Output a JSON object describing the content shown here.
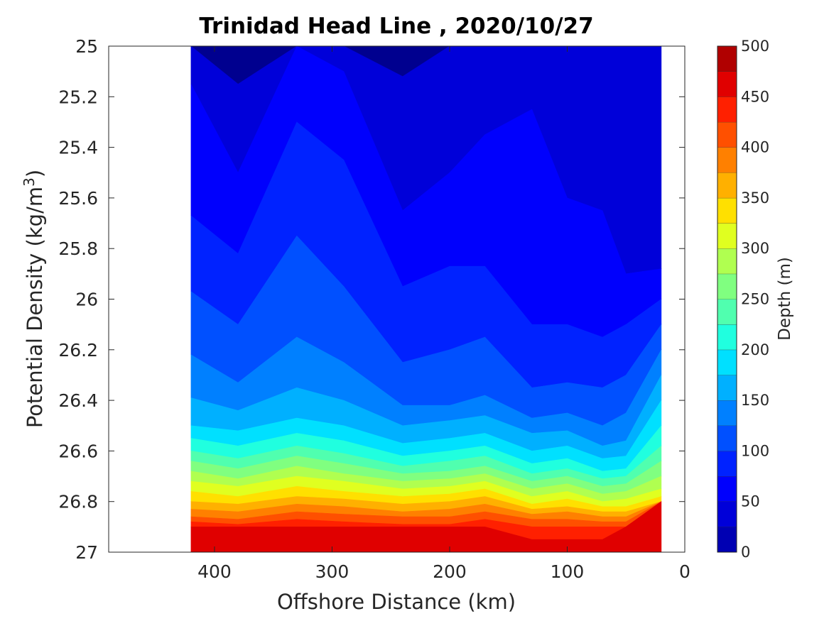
{
  "chart_data": {
    "type": "heatmap",
    "subtype": "filled-contour",
    "title": "Trinidad Head Line , 2020/10/27",
    "xlabel": "Offshore Distance (km)",
    "ylabel_main": "Potential Density (kg/m",
    "ylabel_sup": "3",
    "ylabel_close": ")",
    "colorbar_label": "Depth (m)",
    "x_reversed": true,
    "y_reversed": true,
    "xlim": [
      0,
      490
    ],
    "ylim": [
      25,
      27
    ],
    "xticks": [
      400,
      300,
      200,
      100,
      0
    ],
    "xtick_labels": [
      "400",
      "300",
      "200",
      "100",
      "0"
    ],
    "yticks": [
      25,
      25.2,
      25.4,
      25.6,
      25.8,
      26,
      26.2,
      26.4,
      26.6,
      26.8,
      27
    ],
    "ytick_labels": [
      "25",
      "25.2",
      "25.4",
      "25.6",
      "25.8",
      "26",
      "26.2",
      "26.4",
      "26.6",
      "26.8",
      "27"
    ],
    "colorbar_ticks": [
      0,
      50,
      100,
      150,
      200,
      250,
      300,
      350,
      400,
      450,
      500
    ],
    "colorbar_tick_labels": [
      "0",
      "50",
      "100",
      "150",
      "200",
      "250",
      "300",
      "350",
      "400",
      "450",
      "500"
    ],
    "colorbar_range": [
      0,
      500
    ],
    "contour_interval": 25,
    "colormap": "jet",
    "level_colors": [
      "#00008f",
      "#0000b3",
      "#0000d9",
      "#0000fd",
      "#0022ff",
      "#0050ff",
      "#0080ff",
      "#00b0ff",
      "#00e0ff",
      "#20ffdf",
      "#50ffaf",
      "#80ff80",
      "#b0ff50",
      "#e0ff20",
      "#ffe000",
      "#ffb000",
      "#ff8000",
      "#ff5000",
      "#ff2000",
      "#e00000",
      "#b00000"
    ],
    "station_x": [
      420,
      380,
      330,
      290,
      240,
      200,
      170,
      130,
      100,
      70,
      50,
      20
    ],
    "isopycnal_depths": [
      {
        "depth": 25,
        "y": [
          25.0,
          25.15,
          25.0,
          25.0,
          25.12,
          25.0,
          25.0,
          25.0,
          25.0,
          25.0,
          25.0,
          25.0
        ]
      },
      {
        "depth": 50,
        "y": [
          25.0,
          25.15,
          25.0,
          25.0,
          25.12,
          25.0,
          25.0,
          25.0,
          25.0,
          25.0,
          25.0,
          25.0
        ]
      },
      {
        "depth": 75,
        "y": [
          25.15,
          25.5,
          25.0,
          25.1,
          25.65,
          25.5,
          25.35,
          25.25,
          25.6,
          25.65,
          25.9,
          25.88
        ]
      },
      {
        "depth": 100,
        "y": [
          25.67,
          25.82,
          25.3,
          25.45,
          25.95,
          25.87,
          25.87,
          26.1,
          26.1,
          26.15,
          26.1,
          26.0
        ]
      },
      {
        "depth": 125,
        "y": [
          25.97,
          26.1,
          25.75,
          25.95,
          26.25,
          26.2,
          26.15,
          26.35,
          26.33,
          26.35,
          26.3,
          26.1
        ]
      },
      {
        "depth": 150,
        "y": [
          26.22,
          26.33,
          26.15,
          26.25,
          26.42,
          26.42,
          26.38,
          26.47,
          26.45,
          26.5,
          26.45,
          26.2
        ]
      },
      {
        "depth": 175,
        "y": [
          26.39,
          26.44,
          26.35,
          26.4,
          26.5,
          26.48,
          26.46,
          26.53,
          26.52,
          26.58,
          26.56,
          26.3
        ]
      },
      {
        "depth": 200,
        "y": [
          26.5,
          26.52,
          26.47,
          26.5,
          26.57,
          26.55,
          26.53,
          26.6,
          26.58,
          26.63,
          26.62,
          26.4
        ]
      },
      {
        "depth": 225,
        "y": [
          26.55,
          26.58,
          26.53,
          26.56,
          26.62,
          26.6,
          26.58,
          26.65,
          26.63,
          26.68,
          26.67,
          26.5
        ]
      },
      {
        "depth": 250,
        "y": [
          26.6,
          26.63,
          26.58,
          26.61,
          26.66,
          26.64,
          26.62,
          26.69,
          26.67,
          26.71,
          26.7,
          26.58
        ]
      },
      {
        "depth": 275,
        "y": [
          26.64,
          26.67,
          26.62,
          26.65,
          26.69,
          26.68,
          26.66,
          26.72,
          26.7,
          26.74,
          26.73,
          26.64
        ]
      },
      {
        "depth": 300,
        "y": [
          26.68,
          26.71,
          26.66,
          26.69,
          26.72,
          26.71,
          26.69,
          26.75,
          26.73,
          26.77,
          26.76,
          26.7
        ]
      },
      {
        "depth": 325,
        "y": [
          26.72,
          26.74,
          26.7,
          26.72,
          26.75,
          26.74,
          26.72,
          26.78,
          26.76,
          26.8,
          26.79,
          26.75
        ]
      },
      {
        "depth": 350,
        "y": [
          26.76,
          26.78,
          26.74,
          26.76,
          26.78,
          26.77,
          26.75,
          26.81,
          26.79,
          26.82,
          26.82,
          26.78
        ]
      },
      {
        "depth": 375,
        "y": [
          26.8,
          26.81,
          26.78,
          26.79,
          26.81,
          26.8,
          26.78,
          26.83,
          26.82,
          26.84,
          26.84,
          26.8
        ]
      },
      {
        "depth": 400,
        "y": [
          26.83,
          26.84,
          26.81,
          26.82,
          26.84,
          26.83,
          26.81,
          26.85,
          26.84,
          26.86,
          26.86,
          26.8
        ]
      },
      {
        "depth": 425,
        "y": [
          26.86,
          26.87,
          26.84,
          26.85,
          26.86,
          26.86,
          26.84,
          26.87,
          26.87,
          26.88,
          26.88,
          26.8
        ]
      },
      {
        "depth": 450,
        "y": [
          26.88,
          26.89,
          26.87,
          26.88,
          26.89,
          26.89,
          26.87,
          26.9,
          26.9,
          26.9,
          26.9,
          26.8
        ]
      },
      {
        "depth": 475,
        "y": [
          26.9,
          26.9,
          26.9,
          26.9,
          26.9,
          26.9,
          26.9,
          26.95,
          26.95,
          26.95,
          26.9,
          26.8
        ]
      }
    ]
  }
}
